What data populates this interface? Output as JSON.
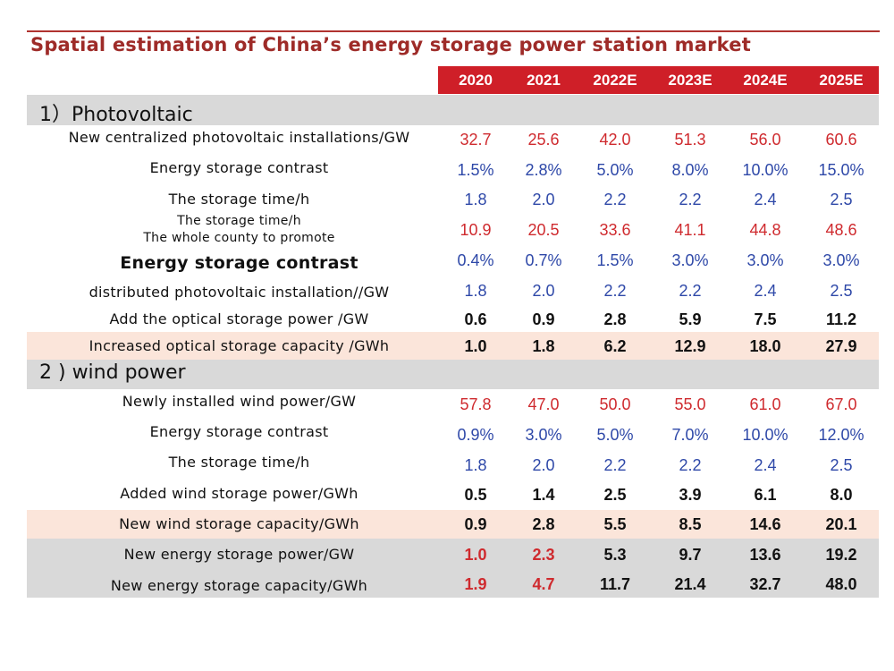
{
  "title": "Spatial estimation of China’s energy storage power station market",
  "years": [
    "2020",
    "2021",
    "2022E",
    "2023E",
    "2024E",
    "2025E"
  ],
  "sections": {
    "photovoltaic": "1）Photovoltaic",
    "wind": "2 ) wind power"
  },
  "rows": [
    {
      "label": "New centralized photovoltaic installations/GW",
      "values": [
        "32.7",
        "25.6",
        "42.0",
        "51.3",
        "56.0",
        "60.6"
      ],
      "color": "#cf2a2e"
    },
    {
      "label": "Energy storage contrast",
      "values": [
        "1.5%",
        "2.8%",
        "5.0%",
        "8.0%",
        "10.0%",
        "15.0%"
      ],
      "color": "#2e48a8"
    },
    {
      "label": "The storage time/h",
      "values": [
        "1.8",
        "2.0",
        "2.2",
        "2.2",
        "2.4",
        "2.5"
      ],
      "color": "#2e48a8"
    },
    {
      "label": "The storage time/h",
      "label2": "The whole county to promote",
      "values": [
        "10.9",
        "20.5",
        "33.6",
        "41.1",
        "44.8",
        "48.6"
      ],
      "color": "#cf2a2e"
    },
    {
      "label": "Energy storage contrast",
      "values": [
        "0.4%",
        "0.7%",
        "1.5%",
        "3.0%",
        "3.0%",
        "3.0%"
      ],
      "color": "#2e48a8"
    },
    {
      "label": "distributed photovoltaic installation//GW",
      "values": [
        "1.8",
        "2.0",
        "2.2",
        "2.2",
        "2.4",
        "2.5"
      ],
      "color": "#2e48a8"
    },
    {
      "label": "Add the optical storage power /GW",
      "values": [
        "0.6",
        "0.9",
        "2.8",
        "5.9",
        "7.5",
        "11.2"
      ],
      "color": "#111111"
    },
    {
      "label": "Increased optical storage capacity /GWh",
      "values": [
        "1.0",
        "1.8",
        "6.2",
        "12.9",
        "18.0",
        "27.9"
      ],
      "color": "#111111"
    },
    {
      "label": "Newly installed wind power/GW",
      "values": [
        "57.8",
        "47.0",
        "50.0",
        "55.0",
        "61.0",
        "67.0"
      ],
      "color": "#cf2a2e"
    },
    {
      "label": "Energy storage contrast",
      "values": [
        "0.9%",
        "3.0%",
        "5.0%",
        "7.0%",
        "10.0%",
        "12.0%"
      ],
      "color": "#2e48a8"
    },
    {
      "label": "The storage time/h",
      "values": [
        "1.8",
        "2.0",
        "2.2",
        "2.2",
        "2.4",
        "2.5"
      ],
      "color": "#2e48a8"
    },
    {
      "label": "Added wind storage power/GWh",
      "values": [
        "0.5",
        "1.4",
        "2.5",
        "3.9",
        "6.1",
        "8.0"
      ],
      "color": "#111111"
    },
    {
      "label": "New wind storage capacity/GWh",
      "values": [
        "0.9",
        "2.8",
        "5.5",
        "8.5",
        "14.6",
        "20.1"
      ],
      "color": "#111111"
    },
    {
      "label": "New energy storage power/GW",
      "values": [
        "1.0",
        "2.3",
        "5.3",
        "9.7",
        "13.6",
        "19.2"
      ],
      "color": "#111111",
      "first_two_color": "#cf2a2e"
    },
    {
      "label": "New energy storage capacity/GWh",
      "values": [
        "1.9",
        "4.7",
        "11.7",
        "21.4",
        "32.7",
        "48.0"
      ],
      "color": "#111111",
      "first_two_color": "#cf2a2e"
    }
  ]
}
